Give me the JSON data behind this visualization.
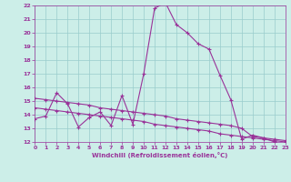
{
  "title": "",
  "xlabel": "Windchill (Refroidissement éolien,°C)",
  "bg_color": "#cceee8",
  "line_color": "#993399",
  "grid_color": "#99cccc",
  "ylim": [
    12,
    22
  ],
  "xlim": [
    0,
    23
  ],
  "yticks": [
    12,
    13,
    14,
    15,
    16,
    17,
    18,
    19,
    20,
    21,
    22
  ],
  "xticks": [
    0,
    1,
    2,
    3,
    4,
    5,
    6,
    7,
    8,
    9,
    10,
    11,
    12,
    13,
    14,
    15,
    16,
    17,
    18,
    19,
    20,
    21,
    22,
    23
  ],
  "series1_x": [
    0,
    1,
    2,
    3,
    4,
    5,
    6,
    7,
    8,
    9,
    10,
    11,
    12,
    13,
    14,
    15,
    16,
    17,
    18,
    19,
    20,
    21,
    22,
    23
  ],
  "series1_y": [
    13.7,
    13.9,
    15.6,
    14.8,
    13.1,
    13.8,
    14.2,
    13.2,
    15.4,
    13.3,
    17.0,
    21.8,
    22.2,
    20.6,
    20.0,
    19.2,
    18.8,
    16.9,
    15.1,
    12.2,
    12.5,
    12.3,
    12.0,
    11.8
  ],
  "series2_x": [
    0,
    1,
    2,
    3,
    4,
    5,
    6,
    7,
    8,
    9,
    10,
    11,
    12,
    13,
    14,
    15,
    16,
    17,
    18,
    19,
    20,
    21,
    22,
    23
  ],
  "series2_y": [
    15.2,
    15.1,
    15.0,
    14.9,
    14.8,
    14.7,
    14.5,
    14.4,
    14.3,
    14.2,
    14.1,
    14.0,
    13.9,
    13.7,
    13.6,
    13.5,
    13.4,
    13.3,
    13.2,
    13.0,
    12.4,
    12.3,
    12.2,
    12.1
  ],
  "series3_x": [
    0,
    1,
    2,
    3,
    4,
    5,
    6,
    7,
    8,
    9,
    10,
    11,
    12,
    13,
    14,
    15,
    16,
    17,
    18,
    19,
    20,
    21,
    22,
    23
  ],
  "series3_y": [
    14.5,
    14.4,
    14.3,
    14.2,
    14.1,
    14.0,
    13.9,
    13.8,
    13.7,
    13.6,
    13.5,
    13.3,
    13.2,
    13.1,
    13.0,
    12.9,
    12.8,
    12.6,
    12.5,
    12.4,
    12.3,
    12.2,
    12.1,
    12.0
  ]
}
